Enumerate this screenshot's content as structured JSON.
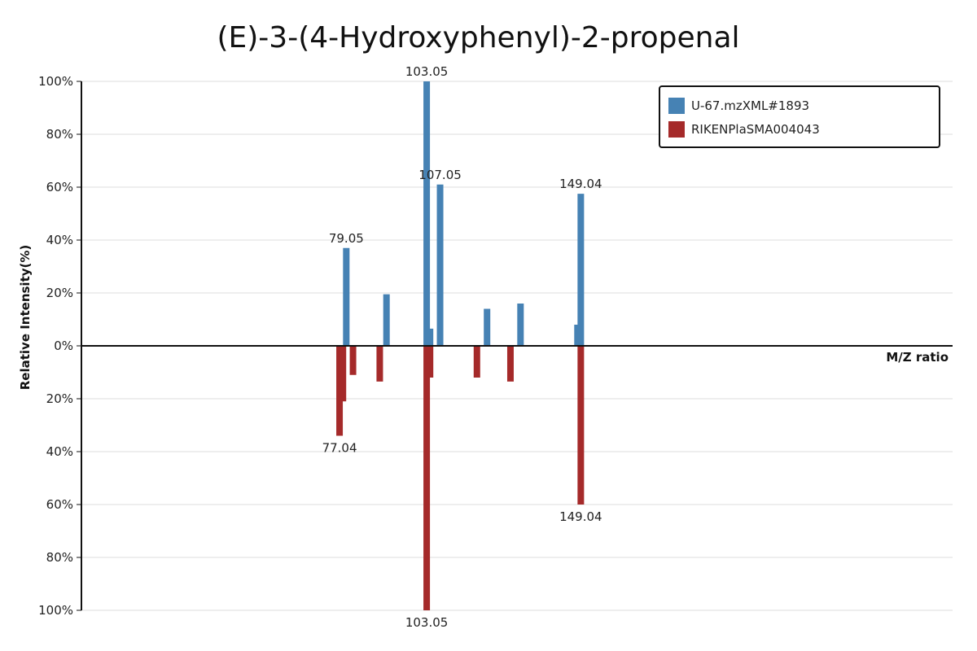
{
  "chart_data": {
    "type": "bar",
    "title": "(E)-3-(4-Hydroxyphenyl)-2-propenal",
    "xlabel": "M/Z ratio",
    "ylabel": "Relative Intensity(%)",
    "y_tick_labels": [
      "100%",
      "80%",
      "60%",
      "40%",
      "20%",
      "0%",
      "20%",
      "40%",
      "60%",
      "80%",
      "100%"
    ],
    "ylim": [
      -100,
      100
    ],
    "grid": true,
    "legend_position": "top-right",
    "series": [
      {
        "name": "U-67.mzXML#1893",
        "color": "#4682b4",
        "direction": "up",
        "peaks": [
          {
            "mz": 79.05,
            "intensity": 37,
            "label": "79.05"
          },
          {
            "mz": 91.05,
            "intensity": 19.5
          },
          {
            "mz": 103.05,
            "intensity": 100,
            "label": "103.05"
          },
          {
            "mz": 104.05,
            "intensity": 6.5
          },
          {
            "mz": 107.05,
            "intensity": 61,
            "label": "107.05"
          },
          {
            "mz": 121.06,
            "intensity": 14
          },
          {
            "mz": 131.05,
            "intensity": 16
          },
          {
            "mz": 148.05,
            "intensity": 8
          },
          {
            "mz": 149.04,
            "intensity": 57.5,
            "label": "149.04"
          }
        ]
      },
      {
        "name": "RIKENPlaSMA004043",
        "color": "#a52a2a",
        "direction": "down",
        "peaks": [
          {
            "mz": 77.04,
            "intensity": 34,
            "label": "77.04"
          },
          {
            "mz": 78.05,
            "intensity": 21
          },
          {
            "mz": 81.05,
            "intensity": 11
          },
          {
            "mz": 89.04,
            "intensity": 13.5
          },
          {
            "mz": 103.05,
            "intensity": 100,
            "label": "103.05"
          },
          {
            "mz": 104.05,
            "intensity": 12
          },
          {
            "mz": 118.04,
            "intensity": 12
          },
          {
            "mz": 128.05,
            "intensity": 13.5
          },
          {
            "mz": 149.04,
            "intensity": 60,
            "label": "149.04"
          }
        ]
      }
    ]
  }
}
